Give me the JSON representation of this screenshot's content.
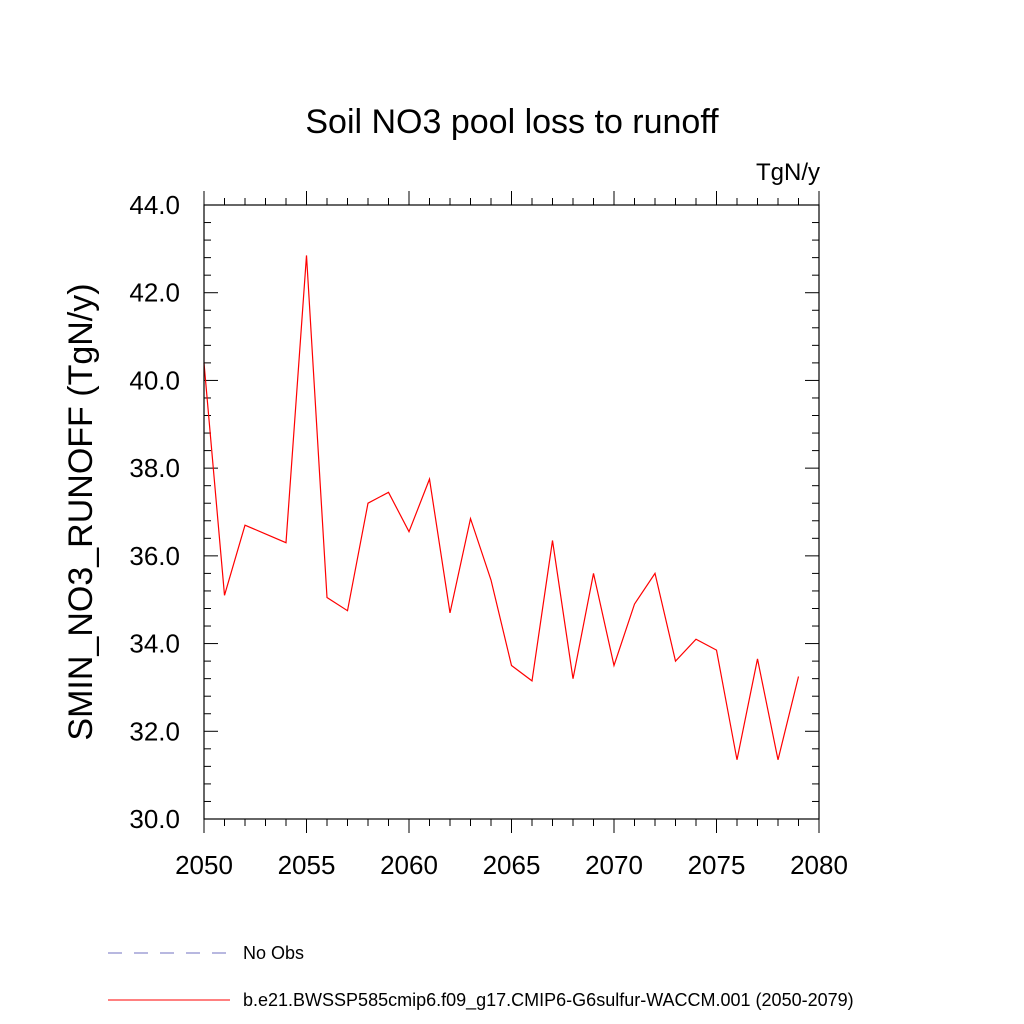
{
  "chart_data": {
    "type": "line",
    "title": "Soil NO3 pool loss to runoff",
    "units": "TgN/y",
    "ylabel": "SMIN_NO3_RUNOFF  (TgN/y)",
    "xlabel": "",
    "xlim": [
      2050,
      2080
    ],
    "ylim": [
      30.0,
      44.0
    ],
    "x_ticks": [
      2050,
      2055,
      2060,
      2065,
      2070,
      2075,
      2080
    ],
    "x_tick_labels": [
      "2050",
      "2055",
      "2060",
      "2065",
      "2070",
      "2075",
      "2080"
    ],
    "y_ticks": [
      30,
      32,
      34,
      36,
      38,
      40,
      42,
      44
    ],
    "y_tick_labels": [
      "30.0",
      "32.0",
      "34.0",
      "36.0",
      "38.0",
      "40.0",
      "42.0",
      "44.0"
    ],
    "grid": false,
    "legend_position": "bottom",
    "series": [
      {
        "name": "b.e21.BWSSP585cmip6.f09_g17.CMIP6-G6sulfur-WACCM.001 (2050-2079)",
        "color": "#ff0000",
        "style": "solid",
        "x": [
          2050,
          2051,
          2052,
          2053,
          2054,
          2055,
          2056,
          2057,
          2058,
          2059,
          2060,
          2061,
          2062,
          2063,
          2064,
          2065,
          2066,
          2067,
          2068,
          2069,
          2070,
          2071,
          2072,
          2073,
          2074,
          2075,
          2076,
          2077,
          2078,
          2079
        ],
        "y": [
          40.4,
          35.1,
          36.7,
          36.5,
          36.3,
          42.85,
          35.05,
          34.75,
          37.2,
          37.45,
          36.55,
          37.75,
          34.7,
          36.85,
          35.45,
          33.5,
          33.15,
          36.35,
          33.2,
          35.6,
          33.5,
          34.9,
          35.6,
          33.6,
          34.1,
          33.85,
          31.35,
          33.65,
          31.35,
          33.25
        ]
      }
    ],
    "legend": [
      {
        "label": "No Obs",
        "color": "#7070c0",
        "style": "dashed"
      },
      {
        "label": "b.e21.BWSSP585cmip6.f09_g17.CMIP6-G6sulfur-WACCM.001 (2050-2079)",
        "color": "#ff0000",
        "style": "solid"
      }
    ]
  }
}
